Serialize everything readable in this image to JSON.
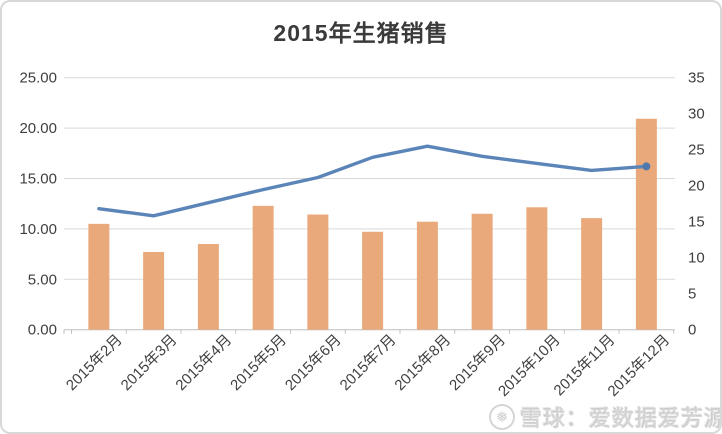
{
  "card": {
    "background": "#ffffff",
    "border_color": "#d8d8d8"
  },
  "watermark": {
    "logo_icon": "snowball-circle-icon",
    "logo_glyph": "❅",
    "text": "雪球：爱数据爱芳源"
  },
  "chart_data": {
    "type": "combo",
    "title": "2015年生猪销售",
    "categories": [
      "2015年2月",
      "2015年3月",
      "2015年4月",
      "2015年5月",
      "2015年6月",
      "2015年7月",
      "2015年8月",
      "2015年9月",
      "2015年10月",
      "2015年11月",
      "2015年12月"
    ],
    "series": [
      {
        "id": "sales-volume-bars",
        "type": "bar",
        "axis": "right",
        "color": "#E9A97A",
        "values": [
          14.7,
          10.8,
          11.9,
          17.2,
          16.0,
          13.6,
          15.0,
          16.1,
          17.0,
          15.5,
          29.3
        ]
      },
      {
        "id": "price-line",
        "type": "line",
        "axis": "left",
        "color": "#5B85B8",
        "marker_color": "#4F79AB",
        "end_marker": true,
        "values": [
          12.0,
          11.3,
          12.6,
          13.9,
          15.1,
          17.1,
          18.2,
          17.2,
          16.5,
          15.8,
          16.2
        ]
      }
    ],
    "left_axis": {
      "min": 0,
      "max": 25,
      "step": 5,
      "tick_labels": [
        "0.00",
        "5.00",
        "10.00",
        "15.00",
        "20.00",
        "25.00"
      ]
    },
    "right_axis": {
      "min": 0,
      "max": 35,
      "step": 5,
      "tick_labels": [
        "0",
        "5",
        "10",
        "15",
        "20",
        "25",
        "30",
        "35"
      ]
    },
    "grid": true,
    "legend": "none",
    "colors": {
      "gridline": "#D9D9D9",
      "axis_line": "#BFBFBF",
      "tick_text": "#404040",
      "title_text": "#3A3A3A"
    }
  }
}
